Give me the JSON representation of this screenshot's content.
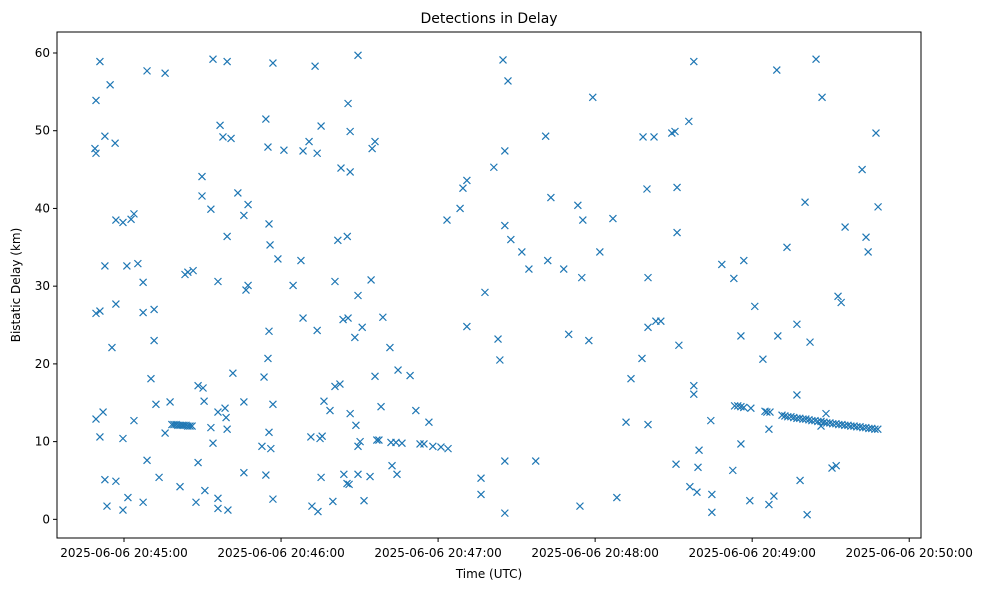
{
  "chart_data": {
    "type": "scatter",
    "title": "Detections in Delay",
    "xlabel": "Time (UTC)",
    "ylabel": "Bistatic Delay (km)",
    "x_unit": "seconds after 2025-06-06 20:45:00",
    "xlim": [
      -25.6,
      304.5
    ],
    "ylim": [
      -2.4,
      62.7
    ],
    "grid": false,
    "marker": "x",
    "color": "#1f77b4",
    "x_ticks": [
      {
        "value": 0,
        "label": "2025-06-06 20:45:00"
      },
      {
        "value": 60,
        "label": "2025-06-06 20:46:00"
      },
      {
        "value": 120,
        "label": "2025-06-06 20:47:00"
      },
      {
        "value": 180,
        "label": "2025-06-06 20:48:00"
      },
      {
        "value": 240,
        "label": "2025-06-06 20:49:00"
      },
      {
        "value": 300,
        "label": "2025-06-06 20:50:00"
      }
    ],
    "y_ticks": [
      {
        "value": 0,
        "label": "0"
      },
      {
        "value": 10,
        "label": "10"
      },
      {
        "value": 20,
        "label": "20"
      },
      {
        "value": 30,
        "label": "30"
      },
      {
        "value": 40,
        "label": "40"
      },
      {
        "value": 50,
        "label": "50"
      },
      {
        "value": 60,
        "label": "60"
      }
    ],
    "points": [
      [
        -10.7,
        53.9
      ],
      [
        -11.1,
        47.7
      ],
      [
        -10.7,
        47.1
      ],
      [
        -9.2,
        58.9
      ],
      [
        -5.3,
        55.9
      ],
      [
        -7.3,
        49.3
      ],
      [
        -3.4,
        48.4
      ],
      [
        -7.3,
        32.6
      ],
      [
        -3.1,
        38.5
      ],
      [
        -0.4,
        38.2
      ],
      [
        2.7,
        38.6
      ],
      [
        3.8,
        39.3
      ],
      [
        -10.7,
        26.5
      ],
      [
        -9.2,
        26.8
      ],
      [
        -3.1,
        27.7
      ],
      [
        -4.6,
        22.1
      ],
      [
        -10.7,
        12.9
      ],
      [
        -9.2,
        10.6
      ],
      [
        -8.0,
        13.8
      ],
      [
        -7.3,
        5.1
      ],
      [
        -6.5,
        1.7
      ],
      [
        -3.1,
        4.9
      ],
      [
        -0.4,
        10.4
      ],
      [
        -0.4,
        1.2
      ],
      [
        1.5,
        2.8
      ],
      [
        3.8,
        12.7
      ],
      [
        1.1,
        32.6
      ],
      [
        5.3,
        32.9
      ],
      [
        7.3,
        30.5
      ],
      [
        7.3,
        26.6
      ],
      [
        11.5,
        27.0
      ],
      [
        11.5,
        23.0
      ],
      [
        10.3,
        18.1
      ],
      [
        8.8,
        7.6
      ],
      [
        7.3,
        2.2
      ],
      [
        8.8,
        57.7
      ],
      [
        15.7,
        57.4
      ],
      [
        12.2,
        14.8
      ],
      [
        13.4,
        5.4
      ],
      [
        15.7,
        11.1
      ],
      [
        17.6,
        15.1
      ],
      [
        21.4,
        4.2
      ],
      [
        18.3,
        12.2
      ],
      [
        19.1,
        12.2
      ],
      [
        19.9,
        12.2
      ],
      [
        20.6,
        12.1
      ],
      [
        21.4,
        12.1
      ],
      [
        22.2,
        12.1
      ],
      [
        22.9,
        12.1
      ],
      [
        23.7,
        12.1
      ],
      [
        24.4,
        12.0
      ],
      [
        25.2,
        12.0
      ],
      [
        26.0,
        12.0
      ],
      [
        23.3,
        31.5
      ],
      [
        24.4,
        31.8
      ],
      [
        26.4,
        32.0
      ],
      [
        28.3,
        17.2
      ],
      [
        30.2,
        16.9
      ],
      [
        30.6,
        15.2
      ],
      [
        29.8,
        44.1
      ],
      [
        29.8,
        41.6
      ],
      [
        33.2,
        39.9
      ],
      [
        28.3,
        7.3
      ],
      [
        27.5,
        2.2
      ],
      [
        30.9,
        3.7
      ],
      [
        33.2,
        11.8
      ],
      [
        34.0,
        9.8
      ],
      [
        35.9,
        13.8
      ],
      [
        35.9,
        2.7
      ],
      [
        35.9,
        1.4
      ],
      [
        38.6,
        14.3
      ],
      [
        39.0,
        13.1
      ],
      [
        39.4,
        11.6
      ],
      [
        39.7,
        1.2
      ],
      [
        34.0,
        59.2
      ],
      [
        39.4,
        58.9
      ],
      [
        36.7,
        50.7
      ],
      [
        37.8,
        49.2
      ],
      [
        40.9,
        49.0
      ],
      [
        39.4,
        36.4
      ],
      [
        35.9,
        30.6
      ],
      [
        41.6,
        18.8
      ],
      [
        43.5,
        42.0
      ],
      [
        45.8,
        39.1
      ],
      [
        47.4,
        40.5
      ],
      [
        46.6,
        29.5
      ],
      [
        47.4,
        30.1
      ],
      [
        45.8,
        15.1
      ],
      [
        45.8,
        6.0
      ],
      [
        54.2,
        51.5
      ],
      [
        55.0,
        47.9
      ],
      [
        55.4,
        38.0
      ],
      [
        55.8,
        35.3
      ],
      [
        58.8,
        33.5
      ],
      [
        56.9,
        58.7
      ],
      [
        55.4,
        24.2
      ],
      [
        55.0,
        20.7
      ],
      [
        53.5,
        18.3
      ],
      [
        52.7,
        9.4
      ],
      [
        54.2,
        5.7
      ],
      [
        55.4,
        11.2
      ],
      [
        56.1,
        9.1
      ],
      [
        56.9,
        14.8
      ],
      [
        56.9,
        2.6
      ],
      [
        61.1,
        47.5
      ],
      [
        64.6,
        30.1
      ],
      [
        67.6,
        33.3
      ],
      [
        68.4,
        47.4
      ],
      [
        70.7,
        48.6
      ],
      [
        73.0,
        58.3
      ],
      [
        73.8,
        47.1
      ],
      [
        75.3,
        50.6
      ],
      [
        68.4,
        25.9
      ],
      [
        73.8,
        24.3
      ],
      [
        71.4,
        10.6
      ],
      [
        71.8,
        1.7
      ],
      [
        74.1,
        1.0
      ],
      [
        74.9,
        10.4
      ],
      [
        75.3,
        5.4
      ],
      [
        76.4,
        15.2
      ],
      [
        75.7,
        10.7
      ],
      [
        78.7,
        14.0
      ],
      [
        80.6,
        17.1
      ],
      [
        82.5,
        17.4
      ],
      [
        80.6,
        30.6
      ],
      [
        81.7,
        35.9
      ],
      [
        79.8,
        2.3
      ],
      [
        82.9,
        45.2
      ],
      [
        85.6,
        53.5
      ],
      [
        86.4,
        49.9
      ],
      [
        86.4,
        44.7
      ],
      [
        85.3,
        36.4
      ],
      [
        83.7,
        25.7
      ],
      [
        85.6,
        25.9
      ],
      [
        89.4,
        28.8
      ],
      [
        89.4,
        59.7
      ],
      [
        88.2,
        23.4
      ],
      [
        91.0,
        24.7
      ],
      [
        86.4,
        13.6
      ],
      [
        88.6,
        12.1
      ],
      [
        90.2,
        10.0
      ],
      [
        89.4,
        9.4
      ],
      [
        84.0,
        5.8
      ],
      [
        85.2,
        4.6
      ],
      [
        86.0,
        4.5
      ],
      [
        89.4,
        5.8
      ],
      [
        91.7,
        2.4
      ],
      [
        94.4,
        30.8
      ],
      [
        94.8,
        47.7
      ],
      [
        95.9,
        48.6
      ],
      [
        95.9,
        18.4
      ],
      [
        94.0,
        5.5
      ],
      [
        96.6,
        10.2
      ],
      [
        97.4,
        10.2
      ],
      [
        98.2,
        14.5
      ],
      [
        98.9,
        26.0
      ],
      [
        101.6,
        22.1
      ],
      [
        102.4,
        6.9
      ],
      [
        104.3,
        5.8
      ],
      [
        102.0,
        9.9
      ],
      [
        103.9,
        9.9
      ],
      [
        106.2,
        9.8
      ],
      [
        104.7,
        19.2
      ],
      [
        109.3,
        18.5
      ],
      [
        111.5,
        14.0
      ],
      [
        113.1,
        9.7
      ],
      [
        114.6,
        9.7
      ],
      [
        116.5,
        12.5
      ],
      [
        118.0,
        9.4
      ],
      [
        121.1,
        9.3
      ],
      [
        123.8,
        9.1
      ],
      [
        123.4,
        38.5
      ],
      [
        128.4,
        40.0
      ],
      [
        129.5,
        42.6
      ],
      [
        131.0,
        43.6
      ],
      [
        131.0,
        24.8
      ],
      [
        137.9,
        29.2
      ],
      [
        141.3,
        45.3
      ],
      [
        144.8,
        59.1
      ],
      [
        146.7,
        56.4
      ],
      [
        145.5,
        47.4
      ],
      [
        142.9,
        23.2
      ],
      [
        143.6,
        20.5
      ],
      [
        145.5,
        37.8
      ],
      [
        147.8,
        36.0
      ],
      [
        152.0,
        34.4
      ],
      [
        154.7,
        32.2
      ],
      [
        136.4,
        5.3
      ],
      [
        136.4,
        3.2
      ],
      [
        145.5,
        7.5
      ],
      [
        145.5,
        0.8
      ],
      [
        157.3,
        7.5
      ],
      [
        161.1,
        49.3
      ],
      [
        163.1,
        41.4
      ],
      [
        161.9,
        33.3
      ],
      [
        168.0,
        32.2
      ],
      [
        169.9,
        23.8
      ],
      [
        173.4,
        40.4
      ],
      [
        175.3,
        38.5
      ],
      [
        174.9,
        31.1
      ],
      [
        174.2,
        1.7
      ],
      [
        177.6,
        23.0
      ],
      [
        179.1,
        54.3
      ],
      [
        181.8,
        34.4
      ],
      [
        186.8,
        38.7
      ],
      [
        188.3,
        2.8
      ],
      [
        191.8,
        12.5
      ],
      [
        193.7,
        18.1
      ],
      [
        197.9,
        20.7
      ],
      [
        198.3,
        49.2
      ],
      [
        199.8,
        42.5
      ],
      [
        200.2,
        31.1
      ],
      [
        200.2,
        24.7
      ],
      [
        202.5,
        49.2
      ],
      [
        203.2,
        25.5
      ],
      [
        205.1,
        25.5
      ],
      [
        200.2,
        12.2
      ],
      [
        209.3,
        49.7
      ],
      [
        210.5,
        49.9
      ],
      [
        211.3,
        42.7
      ],
      [
        211.3,
        36.9
      ],
      [
        212.0,
        22.4
      ],
      [
        210.9,
        7.1
      ],
      [
        215.8,
        51.2
      ],
      [
        217.7,
        58.9
      ],
      [
        217.7,
        17.2
      ],
      [
        217.7,
        16.1
      ],
      [
        216.2,
        4.2
      ],
      [
        218.9,
        3.5
      ],
      [
        219.3,
        6.7
      ],
      [
        219.7,
        8.9
      ],
      [
        224.2,
        12.7
      ],
      [
        224.6,
        3.2
      ],
      [
        224.6,
        0.9
      ],
      [
        228.4,
        32.8
      ],
      [
        233.0,
        31.0
      ],
      [
        232.6,
        6.3
      ],
      [
        235.7,
        23.6
      ],
      [
        235.7,
        9.7
      ],
      [
        236.8,
        33.3
      ],
      [
        239.1,
        2.4
      ],
      [
        241.0,
        27.4
      ],
      [
        244.1,
        20.6
      ],
      [
        246.4,
        11.6
      ],
      [
        246.4,
        1.9
      ],
      [
        248.3,
        3.0
      ],
      [
        249.4,
        57.8
      ],
      [
        249.8,
        23.6
      ],
      [
        253.3,
        35.0
      ],
      [
        257.1,
        25.1
      ],
      [
        258.3,
        5.0
      ],
      [
        260.2,
        40.8
      ],
      [
        261.0,
        0.6
      ],
      [
        262.1,
        22.8
      ],
      [
        264.4,
        59.2
      ],
      [
        266.7,
        54.3
      ],
      [
        268.2,
        13.6
      ],
      [
        270.5,
        6.6
      ],
      [
        272.1,
        6.9
      ],
      [
        272.8,
        28.7
      ],
      [
        274.0,
        27.9
      ],
      [
        275.5,
        37.6
      ],
      [
        282.0,
        45.0
      ],
      [
        283.5,
        36.3
      ],
      [
        284.3,
        34.4
      ],
      [
        287.3,
        49.7
      ],
      [
        288.1,
        40.2
      ],
      [
        257.1,
        16.0
      ],
      [
        266.3,
        12.0
      ],
      [
        233.3,
        14.6
      ],
      [
        234.5,
        14.6
      ],
      [
        235.7,
        14.5
      ],
      [
        236.8,
        14.4
      ],
      [
        239.5,
        14.3
      ],
      [
        244.9,
        13.9
      ],
      [
        245.6,
        13.8
      ],
      [
        246.8,
        13.8
      ],
      [
        251.4,
        13.4
      ],
      [
        252.5,
        13.3
      ],
      [
        253.6,
        13.2
      ],
      [
        254.8,
        13.2
      ],
      [
        255.9,
        13.1
      ],
      [
        257.1,
        13.0
      ],
      [
        258.2,
        13.0
      ],
      [
        259.4,
        12.9
      ],
      [
        260.5,
        12.9
      ],
      [
        261.7,
        12.8
      ],
      [
        262.8,
        12.7
      ],
      [
        264.0,
        12.7
      ],
      [
        265.1,
        12.6
      ],
      [
        266.3,
        12.6
      ],
      [
        267.4,
        12.5
      ],
      [
        268.5,
        12.4
      ],
      [
        269.7,
        12.4
      ],
      [
        270.8,
        12.3
      ],
      [
        272.0,
        12.3
      ],
      [
        273.1,
        12.2
      ],
      [
        274.3,
        12.2
      ],
      [
        275.4,
        12.1
      ],
      [
        276.6,
        12.1
      ],
      [
        277.7,
        12.0
      ],
      [
        278.9,
        12.0
      ],
      [
        280.0,
        11.9
      ],
      [
        281.2,
        11.9
      ],
      [
        282.3,
        11.8
      ],
      [
        283.4,
        11.8
      ],
      [
        284.6,
        11.7
      ],
      [
        285.7,
        11.7
      ],
      [
        286.9,
        11.6
      ],
      [
        288.0,
        11.6
      ]
    ]
  }
}
